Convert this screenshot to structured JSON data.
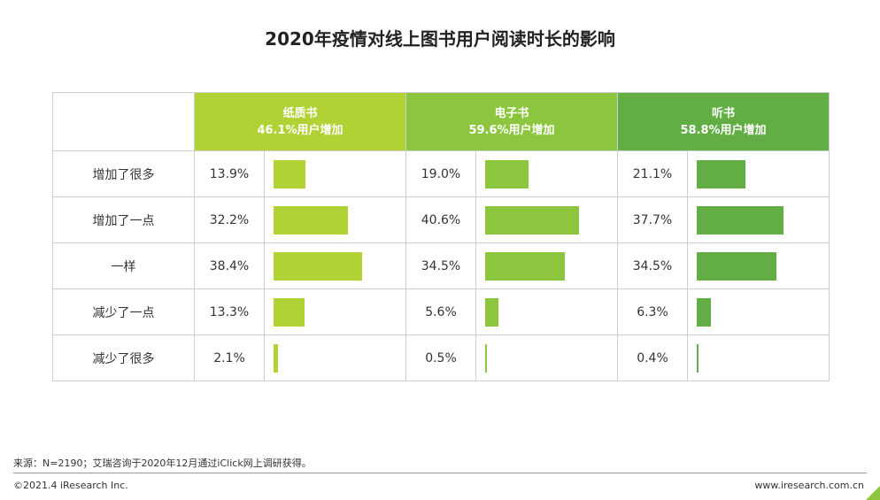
{
  "title": "2020年疫情对线上图书用户阅读时长的影响",
  "chart_data": {
    "type": "table",
    "title": "2020年疫情对线上图书用户阅读时长的影响",
    "categories": [
      "增加了很多",
      "增加了一点",
      "一样",
      "减少了一点",
      "减少了很多"
    ],
    "series": [
      {
        "name": "纸质书",
        "subtitle": "46.1%用户增加",
        "color": "#b1d234",
        "values": [
          13.9,
          32.2,
          38.4,
          13.3,
          2.1
        ]
      },
      {
        "name": "电子书",
        "subtitle": "59.6%用户增加",
        "color": "#8cc63f",
        "values": [
          19.0,
          40.6,
          34.5,
          5.6,
          0.5
        ]
      },
      {
        "name": "听书",
        "subtitle": "58.8%用户增加",
        "color": "#63ad45",
        "values": [
          21.1,
          37.7,
          34.5,
          6.3,
          0.4
        ]
      }
    ],
    "value_labels": [
      [
        "13.9%",
        "32.2%",
        "38.4%",
        "13.3%",
        "2.1%"
      ],
      [
        "19.0%",
        "40.6%",
        "34.5%",
        "5.6%",
        "0.5%"
      ],
      [
        "21.1%",
        "37.7%",
        "34.5%",
        "6.3%",
        "0.4%"
      ]
    ],
    "unit": "%"
  },
  "footer": {
    "source": "来源：N=2190；艾瑞咨询于2020年12月通过iClick网上调研获得。",
    "copyright": "©2021.4 iResearch Inc.",
    "website": "www.iresearch.com.cn",
    "accent_color": "#8cc63f"
  }
}
